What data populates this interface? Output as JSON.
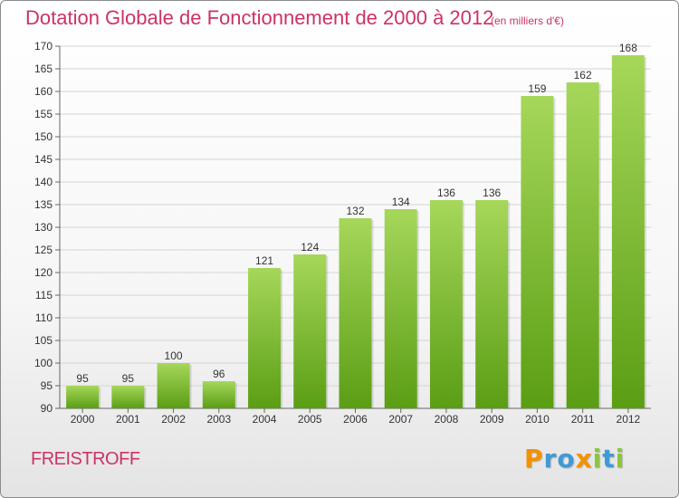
{
  "chart_data": {
    "type": "bar",
    "title": "Dotation Globale de Fonctionnement de 2000 à 2012",
    "subtitle": "(en milliers d'€)",
    "categories": [
      "2000",
      "2001",
      "2002",
      "2003",
      "2004",
      "2005",
      "2006",
      "2007",
      "2008",
      "2009",
      "2010",
      "2011",
      "2012"
    ],
    "values": [
      95,
      95,
      100,
      96,
      121,
      124,
      132,
      134,
      136,
      136,
      159,
      162,
      168
    ],
    "ylim": [
      90,
      170
    ],
    "yticks": [
      90,
      95,
      100,
      105,
      110,
      115,
      120,
      125,
      130,
      135,
      140,
      145,
      150,
      155,
      160,
      165,
      170
    ],
    "grid": true,
    "bar_color_top": "#a6d75a",
    "bar_color_bottom": "#5a9e14"
  },
  "footer": {
    "place": "FREISTROFF",
    "logo_letters": [
      {
        "char": "P",
        "color": "#f39200"
      },
      {
        "char": "r",
        "color": "#3f9ad6"
      },
      {
        "char": "o",
        "color": "#3f9ad6"
      },
      {
        "char": "x",
        "color": "#f39200"
      },
      {
        "char": "i",
        "color": "#8cc63e"
      },
      {
        "char": "t",
        "color": "#3f9ad6"
      },
      {
        "char": "i",
        "color": "#8cc63e"
      }
    ]
  },
  "colors": {
    "accent": "#cc3366"
  }
}
